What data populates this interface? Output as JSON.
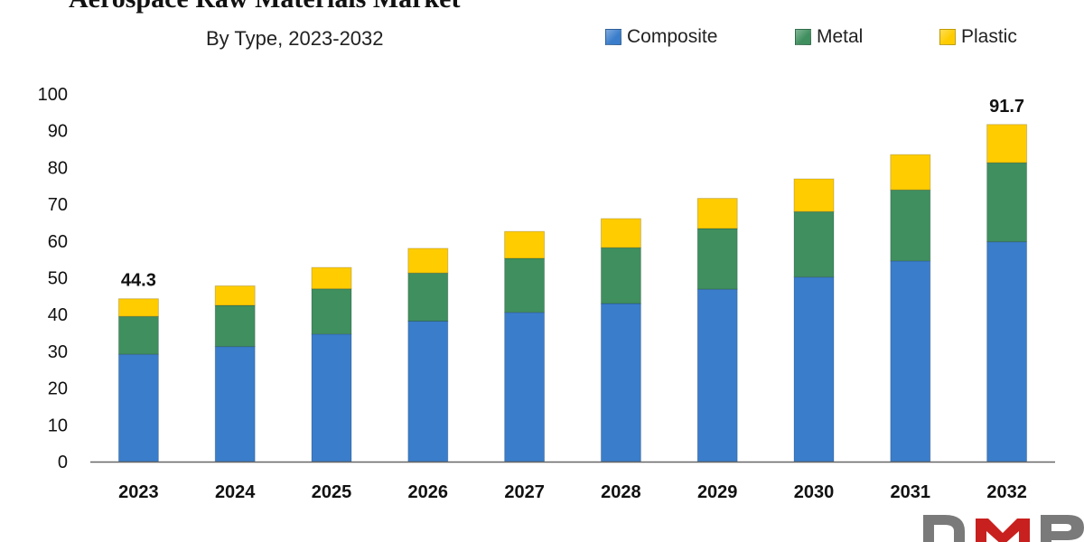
{
  "title": "Aerospace Raw Materials Market",
  "subtitle": "By Type, 2023-2032",
  "colors": {
    "composite": "#3a7dcb",
    "metal": "#3f8f5f",
    "plastic": "#ffcc00"
  },
  "chart_data": {
    "type": "bar",
    "stacked": true,
    "title": "Aerospace Raw Materials Market",
    "subtitle": "By Type, 2023-2032",
    "categories": [
      "2023",
      "2024",
      "2025",
      "2026",
      "2027",
      "2028",
      "2029",
      "2030",
      "2031",
      "2032"
    ],
    "series": [
      {
        "name": "Composite",
        "values": [
          29.2,
          31.3,
          34.7,
          38.2,
          40.6,
          43.0,
          46.9,
          50.2,
          54.6,
          59.8
        ]
      },
      {
        "name": "Metal",
        "values": [
          10.3,
          11.2,
          12.3,
          13.1,
          14.7,
          15.2,
          16.5,
          17.8,
          19.3,
          21.5
        ]
      },
      {
        "name": "Plastic",
        "values": [
          4.8,
          5.3,
          5.8,
          6.7,
          7.3,
          7.9,
          8.2,
          8.9,
          9.6,
          10.4
        ]
      }
    ],
    "data_labels": [
      {
        "category": "2023",
        "text": "44.3"
      },
      {
        "category": "2032",
        "text": "91.7"
      }
    ],
    "yticks": [
      0,
      10,
      20,
      30,
      40,
      50,
      60,
      70,
      80,
      90,
      100
    ],
    "ylim": [
      0,
      100
    ],
    "grid": false,
    "legend": "top-right"
  }
}
